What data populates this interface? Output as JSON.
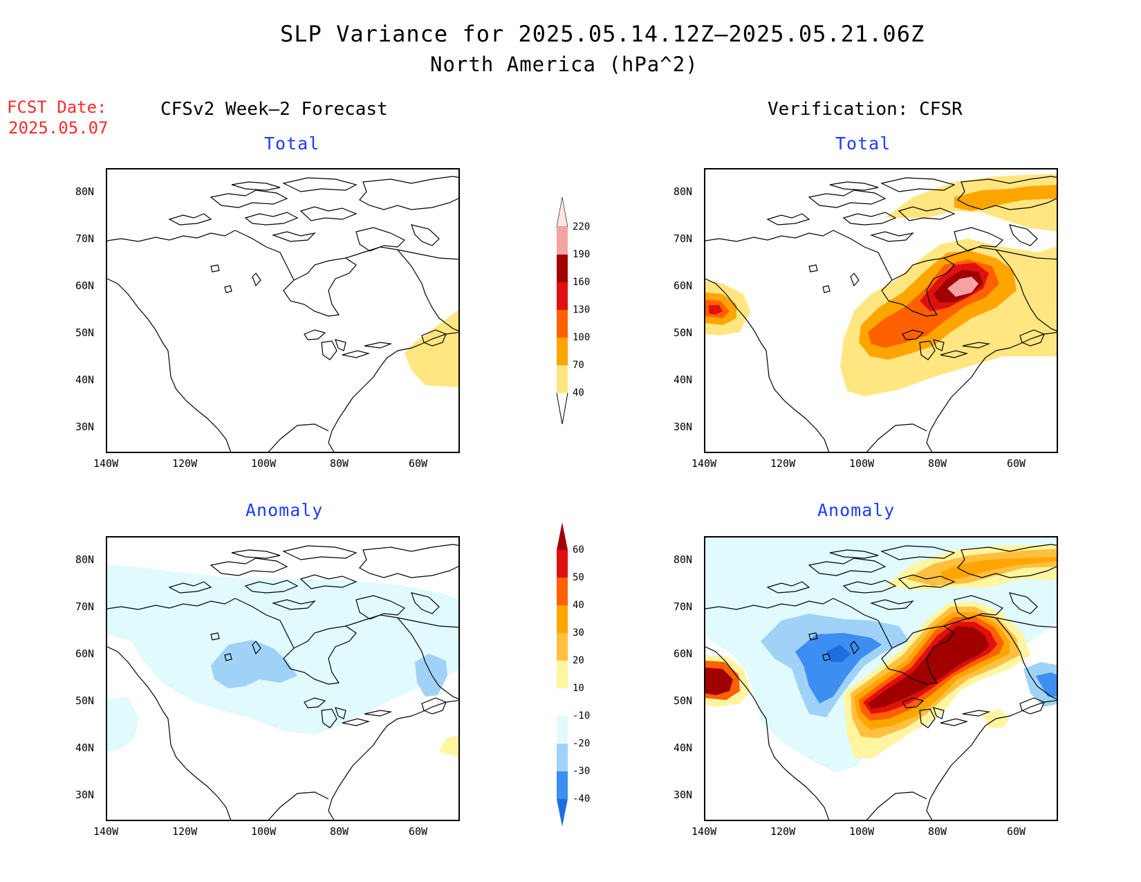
{
  "title": "SLP Variance for 2025.05.14.12Z—2025.05.21.06Z",
  "subtitle": "North America (hPa^2)",
  "fcst_date_label": "FCST Date:",
  "fcst_date_value": "2025.05.07",
  "left_header": "CFSv2 Week—2 Forecast",
  "right_header": "Verification: CFSR",
  "panels": {
    "top_left_title": "Total",
    "top_right_title": "Total",
    "bottom_left_title": "Anomaly",
    "bottom_right_title": "Anomaly"
  },
  "axes": {
    "lat_labels": [
      "80N",
      "70N",
      "60N",
      "50N",
      "40N",
      "30N"
    ],
    "lon_labels": [
      "140W",
      "120W",
      "100W",
      "80W",
      "60W"
    ]
  },
  "total_colorbar": {
    "labels": [
      "220",
      "190",
      "160",
      "130",
      "100",
      "70",
      "40"
    ],
    "colors": [
      "#fde5e5",
      "#f4a3a3",
      "#a00000",
      "#e01010",
      "#ff6000",
      "#ffa500",
      "#ffe680"
    ]
  },
  "anomaly_colorbar": {
    "labels": [
      "60",
      "50",
      "40",
      "30",
      "20",
      "10",
      "-10",
      "-20",
      "-30",
      "-40"
    ],
    "colors": [
      "#a00000",
      "#e01010",
      "#ff6000",
      "#ffa500",
      "#ffc040",
      "#fff5a0",
      "#ffffff",
      "#e0fafd",
      "#a0d2f8",
      "#3c8ef0",
      "#1e6ee0"
    ]
  }
}
